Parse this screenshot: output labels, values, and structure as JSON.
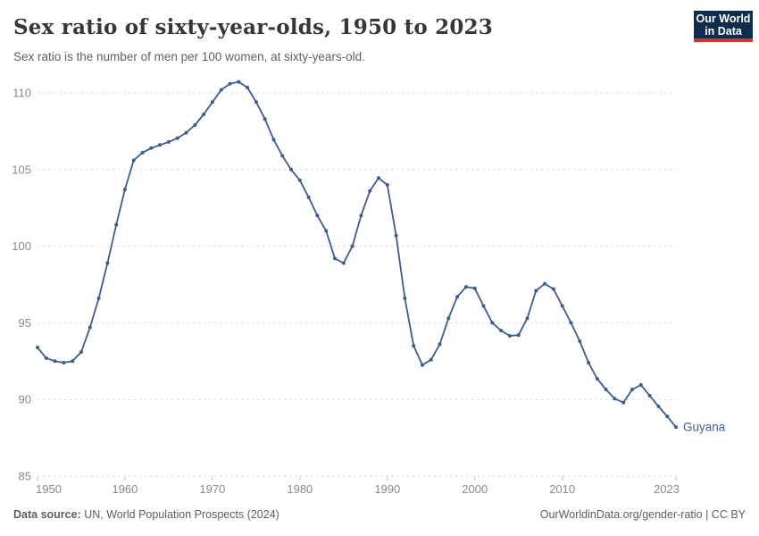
{
  "header": {
    "title": "Sex ratio of sixty-year-olds, 1950 to 2023",
    "subtitle": "Sex ratio is the number of men per 100 women, at sixty-years-old.",
    "logo": {
      "line1": "Our World",
      "line2": "in Data",
      "bg_color": "#0f2e4f",
      "bar_color": "#cc392f",
      "text_color": "#ffffff"
    }
  },
  "chart_data": {
    "type": "line",
    "title": "Sex ratio of sixty-year-olds, 1950 to 2023",
    "entity_label": "Guyana",
    "x": [
      1950,
      1951,
      1952,
      1953,
      1954,
      1955,
      1956,
      1957,
      1958,
      1959,
      1960,
      1961,
      1962,
      1963,
      1964,
      1965,
      1966,
      1967,
      1968,
      1969,
      1970,
      1971,
      1972,
      1973,
      1974,
      1975,
      1976,
      1977,
      1978,
      1979,
      1980,
      1981,
      1982,
      1983,
      1984,
      1985,
      1986,
      1987,
      1988,
      1989,
      1990,
      1991,
      1992,
      1993,
      1994,
      1995,
      1996,
      1997,
      1998,
      1999,
      2000,
      2001,
      2002,
      2003,
      2004,
      2005,
      2006,
      2007,
      2008,
      2009,
      2010,
      2011,
      2012,
      2013,
      2014,
      2015,
      2016,
      2017,
      2018,
      2019,
      2020,
      2021,
      2022,
      2023
    ],
    "values": [
      93.4,
      92.7,
      92.5,
      92.4,
      92.5,
      93.1,
      94.7,
      96.6,
      98.9,
      101.4,
      103.7,
      105.6,
      106.1,
      106.4,
      106.6,
      106.8,
      107.05,
      107.4,
      107.9,
      108.6,
      109.4,
      110.2,
      110.6,
      110.72,
      110.35,
      109.4,
      108.3,
      106.95,
      105.9,
      105.0,
      104.3,
      103.2,
      102.0,
      101.0,
      99.2,
      98.9,
      100.0,
      102.0,
      103.6,
      104.45,
      104.0,
      100.7,
      96.6,
      93.5,
      92.25,
      92.6,
      93.6,
      95.3,
      96.7,
      97.35,
      97.25,
      96.1,
      95.0,
      94.5,
      94.15,
      94.2,
      95.3,
      97.1,
      97.55,
      97.2,
      96.1,
      95.0,
      93.8,
      92.4,
      91.35,
      90.65,
      90.05,
      89.8,
      90.65,
      90.95,
      90.25,
      89.55,
      88.9,
      88.2
    ],
    "xlabel": "",
    "ylabel": "",
    "xlim": [
      1950,
      2023
    ],
    "ylim": [
      85,
      110
    ],
    "x_ticks": [
      1950,
      1960,
      1970,
      1980,
      1990,
      2000,
      2010,
      2023
    ],
    "y_ticks": [
      85,
      90,
      95,
      100,
      105,
      110
    ],
    "grid": "horizontal-dashed",
    "legend_position": "end-of-line-label",
    "line_color": "#3d5b95",
    "marker": "circle",
    "grid_color": "#d9d9d9",
    "tick_text_color": "#8a8a8a",
    "tick_mark_color": "#c2c2c2"
  },
  "footer": {
    "source_label": "Data source:",
    "source_value": " UN, World Population Prospects (2024)",
    "link_text": "OurWorldinData.org/gender-ratio | CC BY"
  }
}
